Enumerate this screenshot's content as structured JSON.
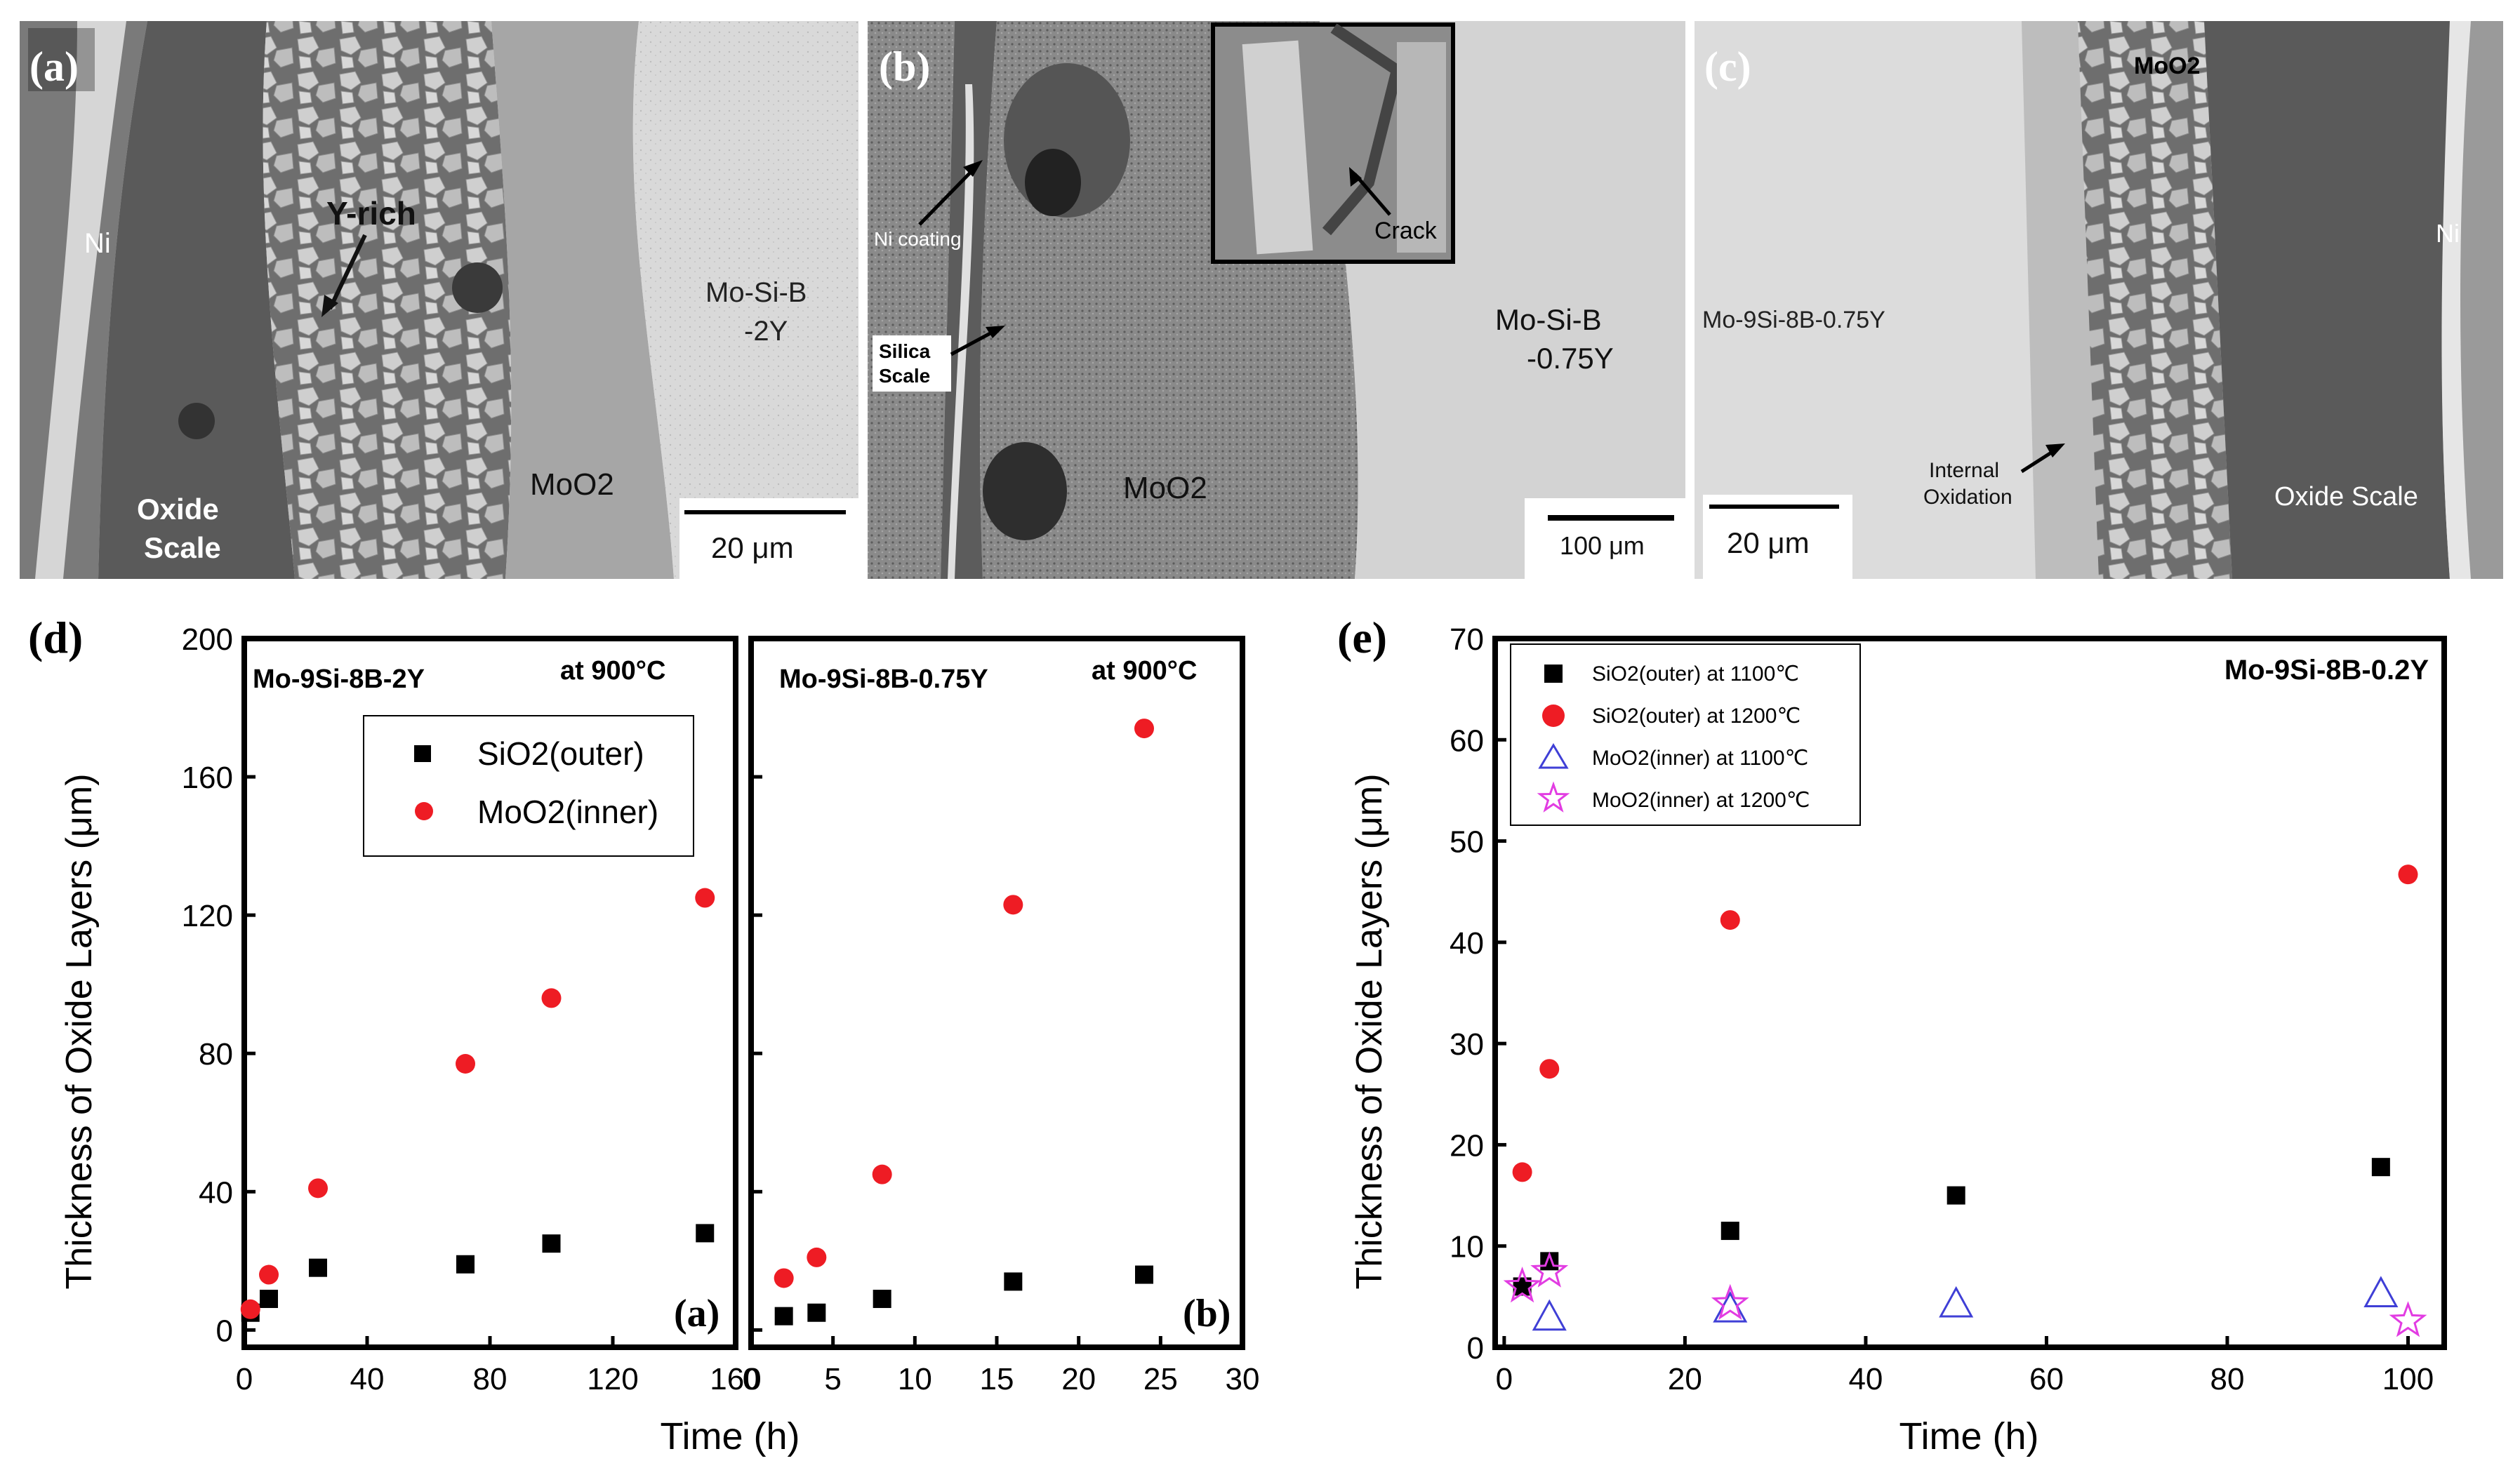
{
  "sem": {
    "a": {
      "label": "(a)",
      "ann": [
        "Ni",
        "Y-rich",
        "Mo-Si-B",
        "-2Y",
        "MoO2",
        "Oxide",
        "Scale"
      ],
      "scale": "20 μm"
    },
    "b": {
      "label": "(b)",
      "ann": [
        "Ni coating",
        "Silica",
        "Scale",
        "MoO2",
        "Mo-Si-B",
        "-0.75Y",
        "Crack"
      ],
      "scale": "100 μm"
    },
    "c": {
      "label": "(c)",
      "ann": [
        "MoO2",
        "Ni",
        "Mo-9Si-8B-0.75Y",
        "Internal",
        "Oxidation",
        "Oxide Scale"
      ],
      "scale": "20 μm"
    }
  },
  "chart_data": [
    {
      "type": "scatter",
      "panel_label": "(d)",
      "inner_label": "(a)",
      "alloy": "Mo-9Si-8B-2Y",
      "temperature": "at 900°C",
      "xlabel": "Time (h)",
      "ylabel": "Thickness of Oxide Layers (μm)",
      "xlim": [
        0,
        160
      ],
      "ylim": [
        -5,
        200
      ],
      "xticks": [
        "0",
        "40",
        "80",
        "120",
        "160"
      ],
      "yticks": [
        "0",
        "40",
        "80",
        "120",
        "160",
        "200"
      ],
      "xtick_values": [
        0,
        40,
        80,
        120,
        160
      ],
      "ytick_values": [
        0,
        40,
        80,
        120,
        160,
        200
      ],
      "legend": [
        "SiO2(outer)",
        "MoO2(inner)"
      ],
      "series": [
        {
          "name": "SiO2(outer)",
          "marker": "square",
          "color": "#000000",
          "x": [
            2,
            8,
            24,
            72,
            100,
            150
          ],
          "y": [
            5,
            9,
            18,
            19,
            25,
            28
          ]
        },
        {
          "name": "MoO2(inner)",
          "marker": "circle",
          "color": "#ee1c24",
          "x": [
            2,
            8,
            24,
            72,
            100,
            150
          ],
          "y": [
            6,
            16,
            41,
            77,
            96,
            125
          ]
        }
      ]
    },
    {
      "type": "scatter",
      "inner_label": "(b)",
      "alloy": "Mo-9Si-8B-0.75Y",
      "temperature": "at 900°C",
      "xlabel": "Time (h)",
      "xlim": [
        0,
        30
      ],
      "ylim": [
        -5,
        200
      ],
      "xticks": [
        "0",
        "5",
        "10",
        "15",
        "20",
        "25",
        "30"
      ],
      "xtick_values": [
        0,
        5,
        10,
        15,
        20,
        25,
        30
      ],
      "ytick_values": [
        0,
        40,
        80,
        120,
        160,
        200
      ],
      "series": [
        {
          "name": "SiO2(outer)",
          "marker": "square",
          "color": "#000000",
          "x": [
            2,
            4,
            8,
            16,
            24
          ],
          "y": [
            4,
            5,
            9,
            14,
            16
          ]
        },
        {
          "name": "MoO2(inner)",
          "marker": "circle",
          "color": "#ee1c24",
          "x": [
            2,
            4,
            8,
            16,
            24
          ],
          "y": [
            15,
            21,
            45,
            123,
            174
          ]
        }
      ]
    },
    {
      "type": "scatter",
      "panel_label": "(e)",
      "alloy": "Mo-9Si-8B-0.2Y",
      "xlabel": "Time (h)",
      "ylabel": "Thickness of Oxide Layers (μm)",
      "xlim": [
        -1,
        104
      ],
      "ylim": [
        0,
        70
      ],
      "xticks": [
        "0",
        "20",
        "40",
        "60",
        "80",
        "100"
      ],
      "yticks": [
        "0",
        "10",
        "20",
        "30",
        "40",
        "50",
        "60",
        "70"
      ],
      "xtick_values": [
        0,
        20,
        40,
        60,
        80,
        100
      ],
      "ytick_values": [
        0,
        10,
        20,
        30,
        40,
        50,
        60,
        70
      ],
      "legend": [
        "SiO2(outer) at 1100℃",
        "SiO2(outer) at 1200℃",
        "MoO2(inner) at 1100℃",
        "MoO2(inner) at 1200℃"
      ],
      "series": [
        {
          "name": "SiO2(outer) at 1100℃",
          "marker": "square",
          "color": "#000000",
          "x": [
            2,
            5,
            25,
            50,
            97
          ],
          "y": [
            6,
            8.5,
            11.5,
            15,
            17.8
          ]
        },
        {
          "name": "SiO2(outer) at 1200℃",
          "marker": "circle",
          "color": "#ee1c24",
          "x": [
            2,
            5,
            25,
            100
          ],
          "y": [
            17.3,
            27.5,
            42.2,
            46.7
          ]
        },
        {
          "name": "MoO2(inner) at 1100℃",
          "marker": "triangle",
          "color": "#3f3fd6",
          "x": [
            5,
            25,
            50,
            97
          ],
          "y": [
            3,
            3.8,
            4.3,
            5.3
          ]
        },
        {
          "name": "MoO2(inner) at 1200℃",
          "marker": "star",
          "color": "#e23ce2",
          "x": [
            2,
            5,
            25,
            100
          ],
          "y": [
            6,
            7.5,
            4.3,
            2.6
          ]
        }
      ]
    }
  ]
}
